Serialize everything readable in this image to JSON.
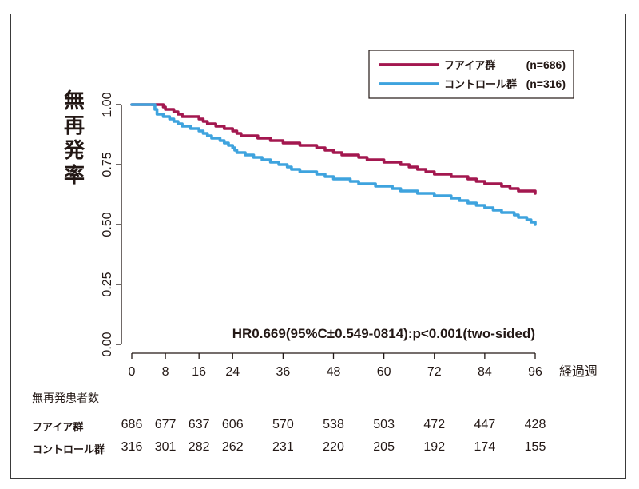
{
  "chart_data": {
    "type": "line",
    "ylabel": "無再発率",
    "xlabel": "経過週",
    "x_ticks": [
      0,
      8,
      16,
      24,
      36,
      48,
      60,
      72,
      84,
      96
    ],
    "y_ticks": [
      "0.00",
      "0.25",
      "0.50",
      "0.75",
      "1.00"
    ],
    "xlim": [
      0,
      96
    ],
    "ylim": [
      0,
      1
    ],
    "annotation": "HR0.669(95%C±0.549-0814):p<0.001(two-sided)",
    "legend_position": "top-right",
    "series": [
      {
        "name": "フアイア群",
        "n_label": "(n=686)",
        "color": "#a3174f",
        "points": [
          [
            0,
            1.0
          ],
          [
            7,
            1.0
          ],
          [
            7.5,
            0.99
          ],
          [
            8,
            0.98
          ],
          [
            10,
            0.97
          ],
          [
            11,
            0.96
          ],
          [
            12,
            0.95
          ],
          [
            16,
            0.94
          ],
          [
            17,
            0.93
          ],
          [
            18,
            0.92
          ],
          [
            20,
            0.91
          ],
          [
            22,
            0.9
          ],
          [
            24,
            0.89
          ],
          [
            25,
            0.88
          ],
          [
            26,
            0.87
          ],
          [
            30,
            0.86
          ],
          [
            33,
            0.85
          ],
          [
            36,
            0.84
          ],
          [
            40,
            0.83
          ],
          [
            44,
            0.82
          ],
          [
            46,
            0.81
          ],
          [
            48,
            0.8
          ],
          [
            50,
            0.79
          ],
          [
            54,
            0.78
          ],
          [
            56,
            0.77
          ],
          [
            60,
            0.76
          ],
          [
            64,
            0.75
          ],
          [
            66,
            0.74
          ],
          [
            68,
            0.73
          ],
          [
            70,
            0.72
          ],
          [
            72,
            0.71
          ],
          [
            76,
            0.7
          ],
          [
            80,
            0.69
          ],
          [
            82,
            0.68
          ],
          [
            84,
            0.67
          ],
          [
            88,
            0.66
          ],
          [
            90,
            0.65
          ],
          [
            92,
            0.64
          ],
          [
            95,
            0.64
          ],
          [
            96,
            0.63
          ]
        ]
      },
      {
        "name": "コントロール群",
        "n_label": "(n=316)",
        "color": "#3ea3de",
        "points": [
          [
            0,
            1.0
          ],
          [
            5,
            1.0
          ],
          [
            5.5,
            0.98
          ],
          [
            6,
            0.96
          ],
          [
            7.5,
            0.95
          ],
          [
            9,
            0.94
          ],
          [
            10,
            0.93
          ],
          [
            11,
            0.92
          ],
          [
            12,
            0.91
          ],
          [
            14,
            0.9
          ],
          [
            16,
            0.89
          ],
          [
            17,
            0.88
          ],
          [
            18,
            0.87
          ],
          [
            19,
            0.86
          ],
          [
            21,
            0.85
          ],
          [
            22,
            0.84
          ],
          [
            23,
            0.83
          ],
          [
            24,
            0.82
          ],
          [
            24.5,
            0.81
          ],
          [
            25,
            0.8
          ],
          [
            27,
            0.79
          ],
          [
            29,
            0.78
          ],
          [
            31,
            0.77
          ],
          [
            33,
            0.76
          ],
          [
            35,
            0.75
          ],
          [
            37,
            0.74
          ],
          [
            38,
            0.73
          ],
          [
            40,
            0.72
          ],
          [
            44,
            0.71
          ],
          [
            46,
            0.7
          ],
          [
            48,
            0.69
          ],
          [
            52,
            0.68
          ],
          [
            54,
            0.67
          ],
          [
            58,
            0.66
          ],
          [
            62,
            0.65
          ],
          [
            64,
            0.64
          ],
          [
            68,
            0.63
          ],
          [
            72,
            0.62
          ],
          [
            76,
            0.61
          ],
          [
            78,
            0.6
          ],
          [
            80,
            0.59
          ],
          [
            82,
            0.58
          ],
          [
            84,
            0.57
          ],
          [
            86,
            0.56
          ],
          [
            88,
            0.55
          ],
          [
            91,
            0.54
          ],
          [
            92,
            0.53
          ],
          [
            94,
            0.52
          ],
          [
            95,
            0.51
          ],
          [
            96,
            0.5
          ]
        ]
      }
    ]
  },
  "risk_table": {
    "title": "無再発患者数",
    "rows": [
      {
        "label": "フアイア群",
        "values": [
          "686",
          "677",
          "637",
          "606",
          "570",
          "538",
          "503",
          "472",
          "447",
          "428"
        ]
      },
      {
        "label": "コントロール群",
        "values": [
          "316",
          "301",
          "282",
          "262",
          "231",
          "220",
          "205",
          "192",
          "174",
          "155"
        ]
      }
    ]
  }
}
